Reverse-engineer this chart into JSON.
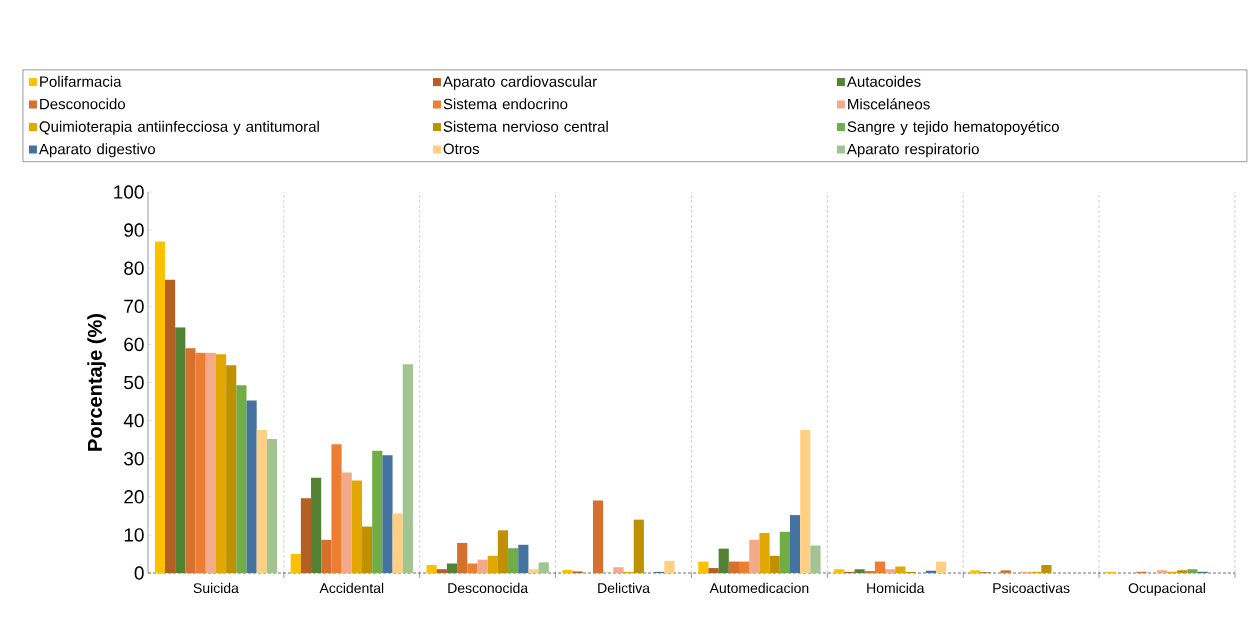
{
  "chart_data": {
    "type": "bar",
    "ylabel": "Porcentaje (%)",
    "categories": [
      "Suicida",
      "Accidental",
      "Desconocida",
      "Delictiva",
      "Automedicacion",
      "Homicida",
      "Psicoactivas",
      "Ocupacional"
    ],
    "series": [
      {
        "name": "Polifarmacia",
        "color": "#ffc000",
        "values": [
          87,
          5,
          2.1,
          0.8,
          3.0,
          1.0,
          0.7,
          0.3
        ]
      },
      {
        "name": "Aparato cardiovascular",
        "color": "#b45f24",
        "values": [
          77,
          19.6,
          1.0,
          0.4,
          1.3,
          0.3,
          0.2,
          0
        ]
      },
      {
        "name": "Autacoides",
        "color": "#548235",
        "values": [
          64.5,
          25,
          2.5,
          0,
          6.4,
          1.0,
          null,
          null
        ]
      },
      {
        "name": "Desconocido",
        "color": "#d5702f",
        "values": [
          59,
          8.7,
          7.9,
          19.0,
          3.0,
          0.5,
          0.7,
          0.3
        ]
      },
      {
        "name": "Sistema endocrino",
        "color": "#ed7d31",
        "values": [
          57.8,
          33.8,
          2.5,
          0,
          3.0,
          3.0,
          0,
          0
        ]
      },
      {
        "name": "Misceláneos",
        "color": "#f4a988",
        "values": [
          57.8,
          26.4,
          3.5,
          1.5,
          8.7,
          1.0,
          0.3,
          0.7
        ]
      },
      {
        "name": "Quimioterapia antiinfecciosa y antitumoral",
        "color": "#e2a700",
        "values": [
          57.4,
          24.3,
          4.5,
          0.3,
          10.5,
          1.7,
          0.3,
          0.3
        ]
      },
      {
        "name": "Sistema nervioso central",
        "color": "#bf9000",
        "values": [
          54.5,
          12.2,
          11.2,
          14.0,
          4.5,
          0.3,
          2.1,
          0.7
        ]
      },
      {
        "name": "Sangre y tejido hematopoyético",
        "color": "#70ad47",
        "values": [
          49.3,
          32.1,
          6.5,
          0,
          10.8,
          0,
          0,
          1.0
        ]
      },
      {
        "name": "Aparato digestivo",
        "color": "#44739f",
        "values": [
          45.3,
          30.9,
          7.4,
          0.3,
          15.2,
          0.6,
          0,
          0.3
        ]
      },
      {
        "name": "Otros",
        "color": "#ffd083",
        "values": [
          37.5,
          15.6,
          1.0,
          3.2,
          37.5,
          3.0,
          0,
          0
        ]
      },
      {
        "name": "Aparato respiratorio",
        "color": "#a1c490",
        "values": [
          35.2,
          54.8,
          2.8,
          0,
          7.2,
          0,
          0,
          0
        ]
      }
    ],
    "ylim": [
      0,
      100
    ],
    "yticks": [
      0,
      10,
      20,
      30,
      40,
      50,
      60,
      70,
      80,
      90,
      100
    ],
    "grid": "x",
    "legend": "top"
  }
}
